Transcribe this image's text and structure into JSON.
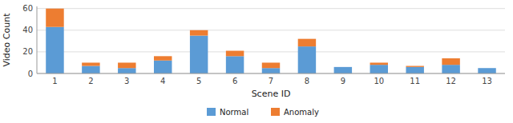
{
  "chart_data": {
    "type": "bar",
    "stacked": true,
    "categories": [
      "1",
      "2",
      "3",
      "4",
      "5",
      "6",
      "7",
      "8",
      "9",
      "10",
      "11",
      "12",
      "13"
    ],
    "series": [
      {
        "name": "Normal",
        "color": "#5B9BD5",
        "values": [
          43,
          7,
          5,
          12,
          35,
          16,
          5,
          25,
          6,
          8,
          6,
          8,
          5
        ]
      },
      {
        "name": "Anomaly",
        "color": "#ED7D31",
        "values": [
          17,
          3,
          5,
          4,
          5,
          5,
          5,
          7,
          0,
          2,
          1,
          6,
          0
        ]
      }
    ],
    "x_label": "Scene ID",
    "y_label": "Video Count",
    "ylim": [
      0,
      62
    ],
    "yticks": [
      0,
      20,
      40,
      60
    ],
    "grid": true,
    "legend": "bottom"
  }
}
